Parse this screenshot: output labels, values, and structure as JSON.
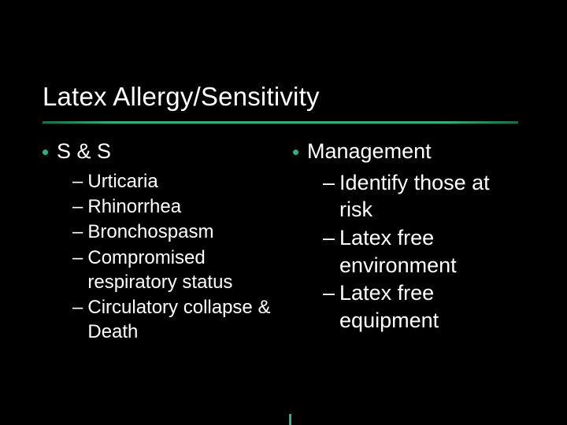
{
  "accent_color": "#2fb080",
  "background_color": "#000000",
  "text_color": "#ffffff",
  "title": "Latex Allergy/Sensitivity",
  "left": {
    "heading": "S & S",
    "items": [
      "Urticaria",
      "Rhinorrhea",
      "Bronchospasm",
      "Compromised respiratory status",
      "Circulatory collapse & Death"
    ]
  },
  "right": {
    "heading": "Management",
    "items": [
      "Identify those at risk",
      "Latex free environment",
      "Latex free equipment"
    ]
  }
}
